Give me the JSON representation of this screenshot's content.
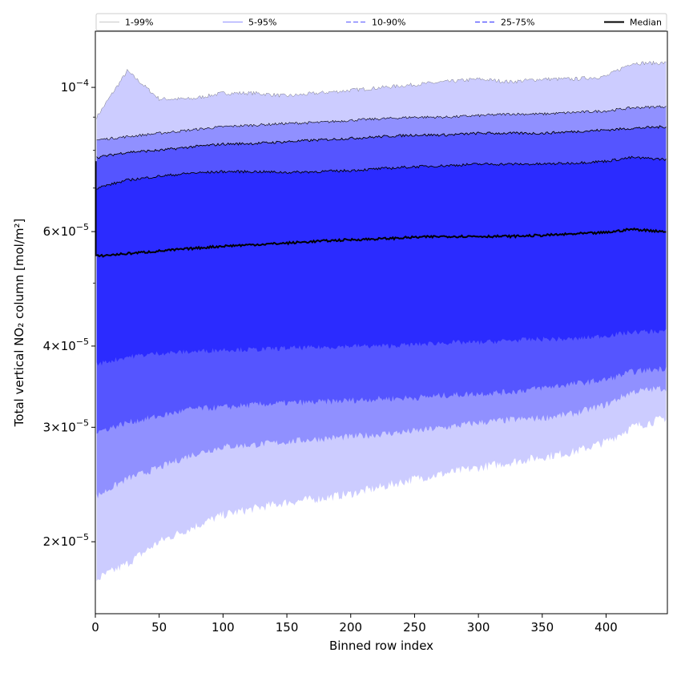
{
  "chart_data": {
    "type": "area",
    "title": "",
    "xlabel": "Binned row index",
    "ylabel": "Total vertical NO₂ column [mol/m²]",
    "y_scale": "log",
    "xlim": [
      0,
      448
    ],
    "ylim": [
      1.55e-05,
      0.000122
    ],
    "grid": false,
    "legend_position": "top",
    "x_ticks": [
      0,
      50,
      100,
      150,
      200,
      250,
      300,
      350,
      400
    ],
    "x_tick_labels": [
      "0",
      "50",
      "100",
      "150",
      "200",
      "250",
      "300",
      "350",
      "400"
    ],
    "y_ticks": [
      {
        "value": 2e-05,
        "mantissa": "2",
        "exp": "−5"
      },
      {
        "value": 3e-05,
        "mantissa": "3",
        "exp": "−5"
      },
      {
        "value": 4e-05,
        "mantissa": "4",
        "exp": "−5"
      },
      {
        "value": 6e-05,
        "mantissa": "6",
        "exp": "−5"
      },
      {
        "value": 0.0001,
        "mantissa": "",
        "exp": "−4"
      }
    ],
    "y_minor_ticks": [
      5e-05,
      7e-05,
      8e-05,
      9e-05
    ],
    "x": [
      1,
      25,
      50,
      75,
      100,
      125,
      150,
      175,
      200,
      225,
      250,
      275,
      300,
      325,
      350,
      375,
      400,
      420,
      447
    ],
    "bands": [
      {
        "name": "1-99%",
        "color": "#ccccff",
        "line_color": "#c0c0c0",
        "line_style": "solid",
        "lower": [
          1.75e-05,
          1.85e-05,
          2e-05,
          2.1e-05,
          2.2e-05,
          2.25e-05,
          2.3e-05,
          2.33e-05,
          2.37e-05,
          2.43e-05,
          2.5e-05,
          2.55e-05,
          2.6e-05,
          2.65e-05,
          2.7e-05,
          2.75e-05,
          2.85e-05,
          3e-05,
          3.1e-05
        ],
        "upper": [
          9e-05,
          0.000106,
          9.6e-05,
          9.6e-05,
          9.8e-05,
          9.8e-05,
          9.7e-05,
          9.8e-05,
          9.9e-05,
          0.0001,
          0.000101,
          0.000102,
          0.000103,
          0.000102,
          0.000103,
          0.000103,
          0.000104,
          0.000109,
          0.000109
        ]
      },
      {
        "name": "5-95%",
        "color": "#9090ff",
        "line_color": "#000000",
        "line_style": "solid",
        "lower": [
          2.35e-05,
          2.5e-05,
          2.6e-05,
          2.72e-05,
          2.8e-05,
          2.82e-05,
          2.85e-05,
          2.88e-05,
          2.9e-05,
          2.93e-05,
          2.96e-05,
          3e-05,
          3.05e-05,
          3.08e-05,
          3.1e-05,
          3.15e-05,
          3.25e-05,
          3.4e-05,
          3.45e-05
        ],
        "upper": [
          8.3e-05,
          8.4e-05,
          8.5e-05,
          8.6e-05,
          8.7e-05,
          8.75e-05,
          8.8e-05,
          8.83e-05,
          8.9e-05,
          8.95e-05,
          9e-05,
          9e-05,
          9.05e-05,
          9.1e-05,
          9.1e-05,
          9.15e-05,
          9.2e-05,
          9.3e-05,
          9.35e-05
        ]
      },
      {
        "name": "10-90%",
        "color": "#5555ff",
        "line_color": "#000000",
        "line_style": "dashed",
        "lower": [
          2.95e-05,
          3.05e-05,
          3.12e-05,
          3.2e-05,
          3.22e-05,
          3.25e-05,
          3.27e-05,
          3.28e-05,
          3.3e-05,
          3.32e-05,
          3.33e-05,
          3.36e-05,
          3.38e-05,
          3.4e-05,
          3.45e-05,
          3.5e-05,
          3.55e-05,
          3.65e-05,
          3.7e-05
        ],
        "upper": [
          7.8e-05,
          7.95e-05,
          8e-05,
          8.1e-05,
          8.18e-05,
          8.2e-05,
          8.25e-05,
          8.3e-05,
          8.35e-05,
          8.4e-05,
          8.45e-05,
          8.45e-05,
          8.5e-05,
          8.5e-05,
          8.5e-05,
          8.55e-05,
          8.6e-05,
          8.65e-05,
          8.7e-05
        ]
      },
      {
        "name": "25-75%",
        "color": "#2b2bff",
        "line_color": "#000000",
        "line_style": "dashed",
        "lower": [
          3.75e-05,
          3.85e-05,
          3.9e-05,
          3.92e-05,
          3.95e-05,
          3.95e-05,
          3.97e-05,
          3.98e-05,
          4e-05,
          4e-05,
          4.02e-05,
          4.05e-05,
          4.05e-05,
          4.08e-05,
          4.1e-05,
          4.1e-05,
          4.15e-05,
          4.2e-05,
          4.22e-05
        ],
        "upper": [
          7e-05,
          7.2e-05,
          7.3e-05,
          7.38e-05,
          7.42e-05,
          7.42e-05,
          7.4e-05,
          7.42e-05,
          7.45e-05,
          7.5e-05,
          7.55e-05,
          7.58e-05,
          7.62e-05,
          7.62e-05,
          7.62e-05,
          7.65e-05,
          7.7e-05,
          7.8e-05,
          7.75e-05
        ]
      }
    ],
    "median": {
      "name": "Median",
      "color": "#000000",
      "values": [
        5.5e-05,
        5.55e-05,
        5.6e-05,
        5.65e-05,
        5.7e-05,
        5.73e-05,
        5.76e-05,
        5.8e-05,
        5.83e-05,
        5.85e-05,
        5.88e-05,
        5.9e-05,
        5.9e-05,
        5.9e-05,
        5.92e-05,
        5.95e-05,
        5.98e-05,
        6.05e-05,
        6e-05
      ]
    }
  }
}
